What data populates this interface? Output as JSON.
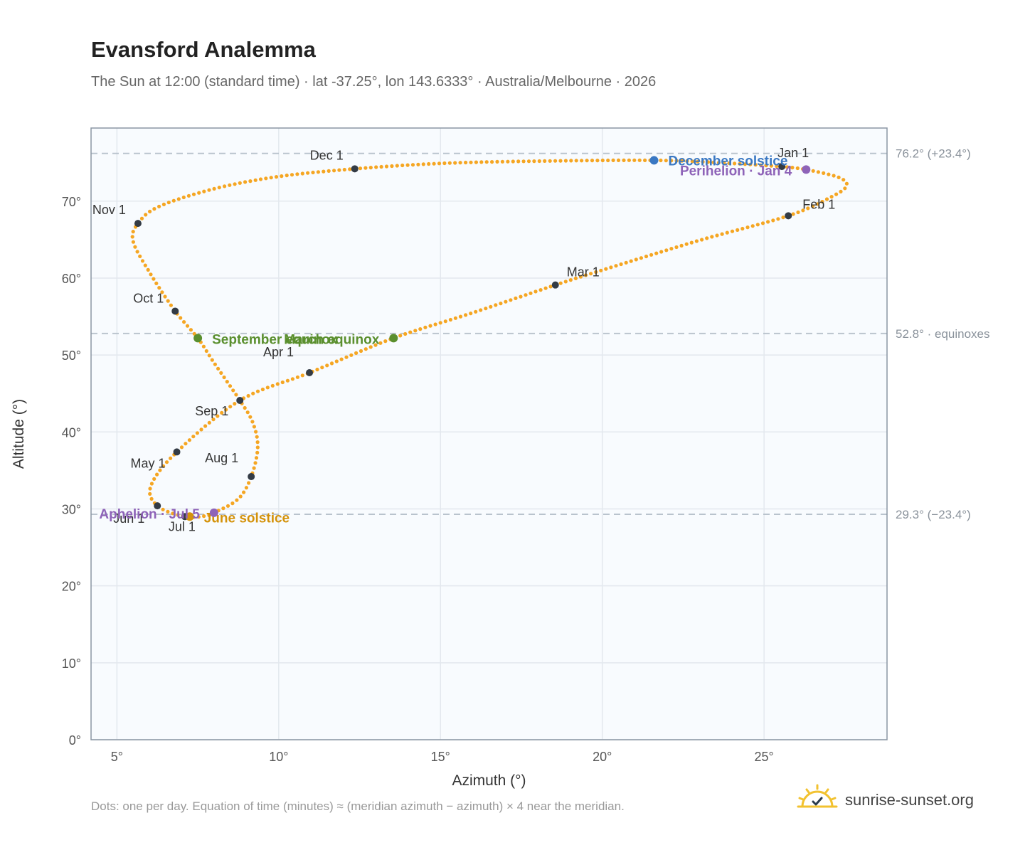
{
  "header": {
    "title": "Evansford Analemma",
    "subtitle": "The Sun at 12:00 (standard time) · lat -37.25°, lon 143.6333° · Australia/Melbourne · 2026"
  },
  "footer": {
    "note": "Dots: one per day. Equation of time (minutes) ≈ (meridian azimuth − azimuth) × 4 near the meridian.",
    "brand": "sunrise-sunset.org"
  },
  "colors": {
    "curve": "#f5a623",
    "month_marker": "#333b45",
    "solstice_dec": "#3a78c3",
    "solstice_jun": "#d4920a",
    "equinox": "#5a8f2e",
    "apsis": "#8e63b8",
    "plot_bg": "#f8fbfe",
    "grid": "#e3e8ee",
    "ref_line": "#b8c2cc"
  },
  "chart_data": {
    "type": "scatter",
    "xlabel": "Azimuth (°)",
    "ylabel": "Altitude (°)",
    "xlim": [
      4.2,
      28.8
    ],
    "ylim": [
      0,
      79.5
    ],
    "xticks": [
      5,
      10,
      15,
      20,
      25
    ],
    "xtick_labels": [
      "5°",
      "10°",
      "15°",
      "20°",
      "25°"
    ],
    "yticks": [
      0,
      10,
      20,
      30,
      40,
      50,
      60,
      70
    ],
    "ytick_labels": [
      "0°",
      "10°",
      "20°",
      "30°",
      "40°",
      "50°",
      "60°",
      "70°"
    ],
    "grid": true,
    "reference_lines": [
      {
        "y": 76.2,
        "label": "76.2° (+23.4°)"
      },
      {
        "y": 52.8,
        "label": "52.8° · equinoxes"
      },
      {
        "y": 29.3,
        "label": "29.3° (−23.4°)"
      }
    ],
    "month_markers": [
      {
        "label": "Jan 1",
        "x": 25.55,
        "y": 74.5
      },
      {
        "label": "Feb 1",
        "x": 25.75,
        "y": 68.1
      },
      {
        "label": "Mar 1",
        "x": 18.55,
        "y": 59.1
      },
      {
        "label": "Apr 1",
        "x": 10.95,
        "y": 47.7
      },
      {
        "label": "May 1",
        "x": 6.85,
        "y": 37.4
      },
      {
        "label": "Jun 1",
        "x": 6.25,
        "y": 30.4
      },
      {
        "label": "Jul 1",
        "x": 7.1,
        "y": 29.0
      },
      {
        "label": "Aug 1",
        "x": 9.15,
        "y": 34.2
      },
      {
        "label": "Sep 1",
        "x": 8.8,
        "y": 44.1
      },
      {
        "label": "Oct 1",
        "x": 6.8,
        "y": 55.7
      },
      {
        "label": "Nov 1",
        "x": 5.65,
        "y": 67.1
      },
      {
        "label": "Dec 1",
        "x": 12.35,
        "y": 74.2
      }
    ],
    "events": [
      {
        "label": "December solstice",
        "x": 21.6,
        "y": 75.3,
        "kind": "solstice_dec"
      },
      {
        "label": "Perihelion · Jan 4",
        "x": 26.3,
        "y": 74.1,
        "kind": "apsis"
      },
      {
        "label": "March equinox",
        "x": 13.55,
        "y": 52.2,
        "kind": "equinox"
      },
      {
        "label": "September equinox",
        "x": 7.5,
        "y": 52.2,
        "kind": "equinox"
      },
      {
        "label": "June solstice",
        "x": 7.25,
        "y": 29.0,
        "kind": "solstice_jun"
      },
      {
        "label": "Aphelion · Jul 5",
        "x": 8.0,
        "y": 29.5,
        "kind": "apsis"
      }
    ],
    "path": [
      [
        25.55,
        74.5
      ],
      [
        26.3,
        74.1
      ],
      [
        27.3,
        73.1
      ],
      [
        27.55,
        72.0
      ],
      [
        27.1,
        70.6
      ],
      [
        25.75,
        68.1
      ],
      [
        23.0,
        64.9
      ],
      [
        20.2,
        61.3
      ],
      [
        18.55,
        59.1
      ],
      [
        16.0,
        55.5
      ],
      [
        13.55,
        52.2
      ],
      [
        10.95,
        47.7
      ],
      [
        8.8,
        44.1
      ],
      [
        6.85,
        37.4
      ],
      [
        6.05,
        33.0
      ],
      [
        6.25,
        30.4
      ],
      [
        7.1,
        29.0
      ],
      [
        7.75,
        29.1
      ],
      [
        8.0,
        29.5
      ],
      [
        8.75,
        31.3
      ],
      [
        9.15,
        34.2
      ],
      [
        9.35,
        38.0
      ],
      [
        9.2,
        41.2
      ],
      [
        8.8,
        44.1
      ],
      [
        8.0,
        49.0
      ],
      [
        7.5,
        52.2
      ],
      [
        6.8,
        55.7
      ],
      [
        6.0,
        60.8
      ],
      [
        5.5,
        64.8
      ],
      [
        5.65,
        67.1
      ],
      [
        6.3,
        69.3
      ],
      [
        8.0,
        71.6
      ],
      [
        10.0,
        73.2
      ],
      [
        12.35,
        74.2
      ],
      [
        15.0,
        74.9
      ],
      [
        18.0,
        75.2
      ],
      [
        21.6,
        75.3
      ],
      [
        23.6,
        75.0
      ],
      [
        25.55,
        74.5
      ]
    ],
    "curve_note": "one dot per day"
  }
}
